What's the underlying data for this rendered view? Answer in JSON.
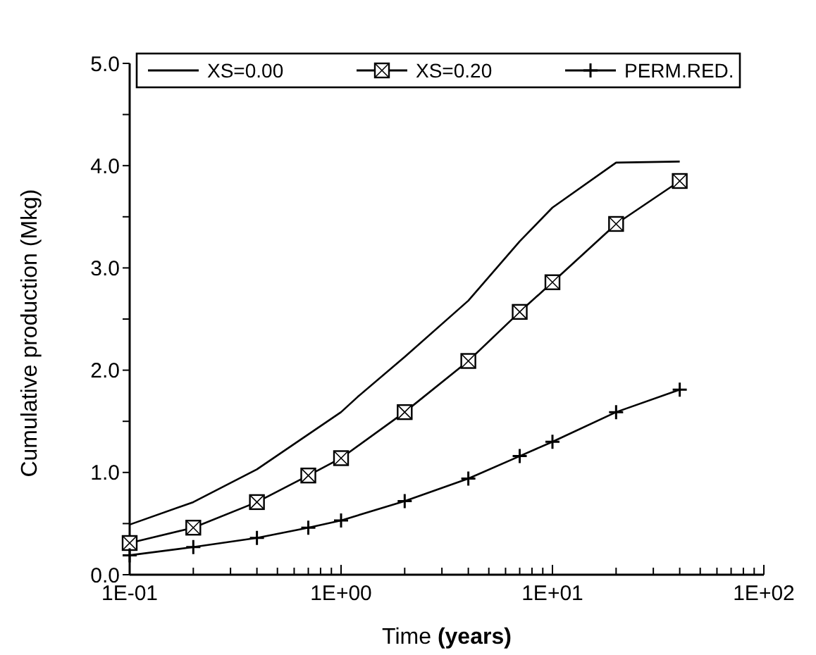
{
  "chart_data": {
    "type": "line",
    "xlabel": "Time (years)",
    "ylabel": "Cumulative production (Mkg)",
    "log": "x",
    "xlim": [
      0.1,
      100
    ],
    "xticks": [
      {
        "value": 0.1,
        "label": "1E-01"
      },
      {
        "value": 0.2,
        "label": null
      },
      {
        "value": 0.3,
        "label": null
      },
      {
        "value": 0.4,
        "label": null
      },
      {
        "value": 0.5,
        "label": null
      },
      {
        "value": 0.6,
        "label": null
      },
      {
        "value": 0.7,
        "label": null
      },
      {
        "value": 0.8,
        "label": null
      },
      {
        "value": 0.9,
        "label": null
      },
      {
        "value": 1,
        "label": "1E+00"
      },
      {
        "value": 2,
        "label": null
      },
      {
        "value": 3,
        "label": null
      },
      {
        "value": 4,
        "label": null
      },
      {
        "value": 5,
        "label": null
      },
      {
        "value": 6,
        "label": null
      },
      {
        "value": 7,
        "label": null
      },
      {
        "value": 8,
        "label": null
      },
      {
        "value": 9,
        "label": null
      },
      {
        "value": 10,
        "label": "1E+01"
      },
      {
        "value": 20,
        "label": null
      },
      {
        "value": 30,
        "label": null
      },
      {
        "value": 40,
        "label": null
      },
      {
        "value": 50,
        "label": null
      },
      {
        "value": 60,
        "label": null
      },
      {
        "value": 70,
        "label": null
      },
      {
        "value": 80,
        "label": null
      },
      {
        "value": 90,
        "label": null
      },
      {
        "value": 100,
        "label": "1E+02"
      }
    ],
    "ylim": [
      0,
      5
    ],
    "yticks": [
      {
        "value": 0,
        "label": "0.0"
      },
      {
        "value": 0.5,
        "label": null
      },
      {
        "value": 1,
        "label": "1.0"
      },
      {
        "value": 1.5,
        "label": null
      },
      {
        "value": 2,
        "label": "2.0"
      },
      {
        "value": 2.5,
        "label": null
      },
      {
        "value": 3,
        "label": "3.0"
      },
      {
        "value": 3.5,
        "label": null
      },
      {
        "value": 4,
        "label": "4.0"
      },
      {
        "value": 4.5,
        "label": null
      },
      {
        "value": 5,
        "label": "5.0"
      }
    ],
    "grid": false,
    "legend": "top",
    "series": [
      {
        "name": "XS=0.00",
        "color": "#000000",
        "marker": "none",
        "x": [
          0.1,
          0.2,
          0.4,
          1,
          1.2,
          2,
          4,
          7,
          10,
          20,
          40
        ],
        "values": [
          0.49,
          0.71,
          1.03,
          1.59,
          1.74,
          2.13,
          2.68,
          3.26,
          3.59,
          4.03,
          4.04
        ]
      },
      {
        "name": "XS=0.20",
        "color": "#000000",
        "marker": "square",
        "x": [
          0.1,
          0.2,
          0.4,
          0.7,
          1,
          2,
          4,
          7,
          10,
          20,
          40
        ],
        "values": [
          0.31,
          0.46,
          0.71,
          0.97,
          1.14,
          1.59,
          2.09,
          2.57,
          2.86,
          3.43,
          3.85
        ]
      },
      {
        "name": "PERM.RED.",
        "color": "#000000",
        "marker": "cross",
        "x": [
          0.1,
          0.2,
          0.4,
          0.7,
          1,
          2,
          4,
          7,
          10,
          20,
          40
        ],
        "values": [
          0.19,
          0.27,
          0.36,
          0.46,
          0.53,
          0.72,
          0.94,
          1.16,
          1.3,
          1.59,
          1.81
        ]
      }
    ]
  }
}
